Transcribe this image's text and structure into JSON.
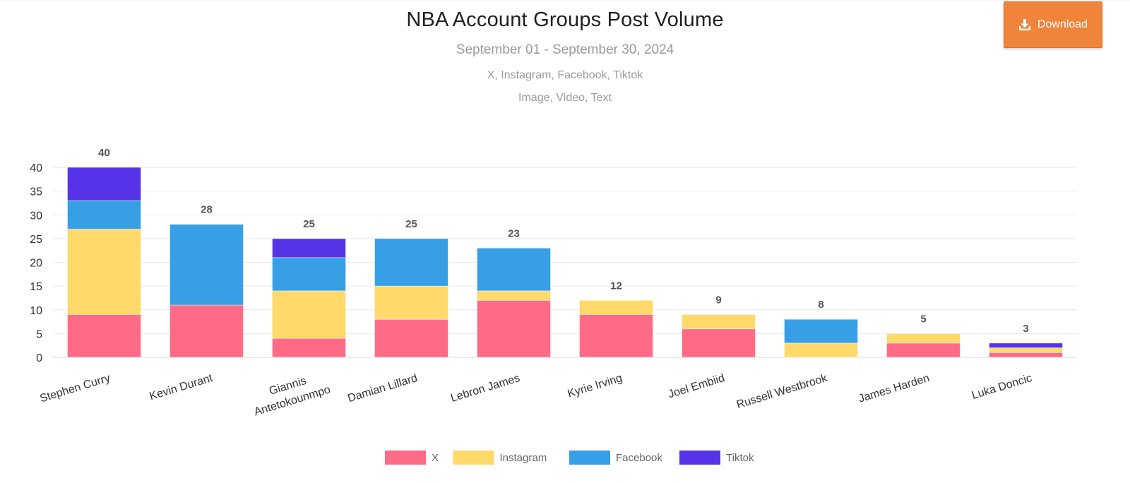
{
  "header": {
    "title": "NBA Account Groups Post Volume",
    "subtitle": "September 01 - September 30, 2024",
    "platforms": "X, Instagram, Facebook, Tiktok",
    "content_types": "Image, Video, Text"
  },
  "download": {
    "label": "Download",
    "icon": "download-icon",
    "color": "#f0843a"
  },
  "chart_data": {
    "type": "bar",
    "stacked": true,
    "categories": [
      "Stephen Curry",
      "Kevin Durant",
      "Giannis Antetokounmpo",
      "Damian Lillard",
      "Lebron James",
      "Kyrie Irving",
      "Joel Embiid",
      "Russell Westbrook",
      "James Harden",
      "Luka Doncic"
    ],
    "series": [
      {
        "name": "X",
        "color": "#ff6b86",
        "values": [
          9,
          11,
          4,
          8,
          12,
          9,
          6,
          0,
          3,
          1
        ]
      },
      {
        "name": "Instagram",
        "color": "#ffd96a",
        "values": [
          18,
          0,
          10,
          7,
          2,
          3,
          3,
          3,
          2,
          1
        ]
      },
      {
        "name": "Facebook",
        "color": "#369fe6",
        "values": [
          6,
          17,
          7,
          10,
          9,
          0,
          0,
          5,
          0,
          0
        ]
      },
      {
        "name": "Tiktok",
        "color": "#5733e8",
        "values": [
          7,
          0,
          4,
          0,
          0,
          0,
          0,
          0,
          0,
          1
        ]
      }
    ],
    "totals": [
      40,
      28,
      25,
      25,
      23,
      12,
      9,
      8,
      5,
      3
    ],
    "yticks": [
      0,
      5,
      10,
      15,
      20,
      25,
      30,
      35,
      40
    ],
    "ylim": [
      0,
      40
    ],
    "grid": true,
    "legend": "bottom-center"
  }
}
